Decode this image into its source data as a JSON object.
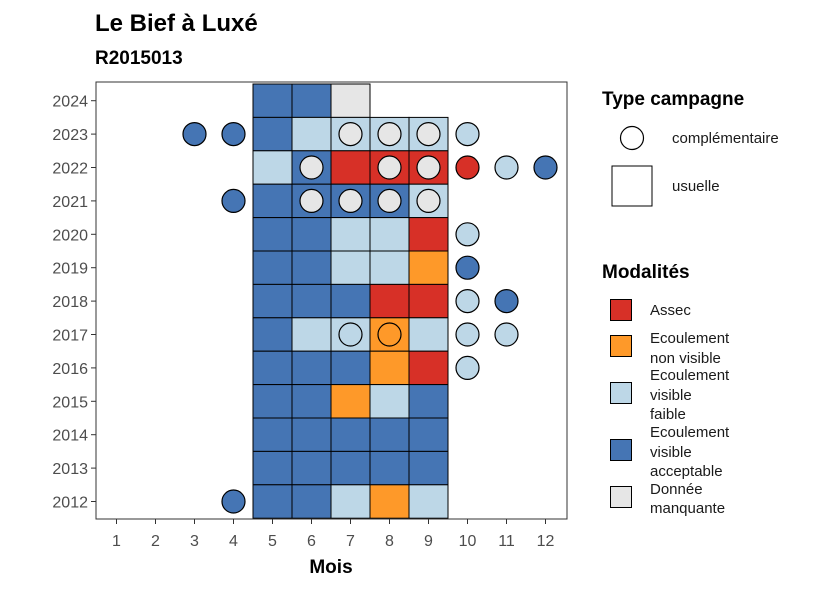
{
  "chart_data": {
    "type": "heatmap",
    "title": "Le Bief à Luxé",
    "subtitle": "R2015013",
    "xlabel": "Mois",
    "x": [
      1,
      2,
      3,
      4,
      5,
      6,
      7,
      8,
      9,
      10,
      11,
      12
    ],
    "y": [
      2012,
      2013,
      2014,
      2015,
      2016,
      2017,
      2018,
      2019,
      2020,
      2021,
      2022,
      2023,
      2024
    ],
    "modalites": [
      {
        "key": "assec",
        "label": [
          "Assec"
        ],
        "color": "#d73027"
      },
      {
        "key": "nonvisible",
        "label": [
          "Ecoulement",
          "non visible"
        ],
        "color": "#fe9929"
      },
      {
        "key": "faible",
        "label": [
          "Ecoulement",
          "visible",
          "faible"
        ],
        "color": "#bdd7e7"
      },
      {
        "key": "acceptable",
        "label": [
          "Ecoulement",
          "visible",
          "acceptable"
        ],
        "color": "#4575b4"
      },
      {
        "key": "manquante",
        "label": [
          "Donnée",
          "manquante"
        ],
        "color": "#e6e6e6"
      }
    ],
    "type_campagne": [
      {
        "key": "complementaire",
        "label": "complémentaire",
        "shape": "circle"
      },
      {
        "key": "usuelle",
        "label": "usuelle",
        "shape": "square"
      }
    ],
    "usuelle": [
      {
        "year": 2024,
        "months": {
          "5": "acceptable",
          "6": "acceptable",
          "7": "manquante"
        }
      },
      {
        "year": 2023,
        "months": {
          "5": "acceptable",
          "6": "faible",
          "7": "faible",
          "8": "faible",
          "9": "faible"
        }
      },
      {
        "year": 2022,
        "months": {
          "5": "faible",
          "6": "acceptable",
          "7": "assec",
          "8": "assec",
          "9": "assec"
        }
      },
      {
        "year": 2021,
        "months": {
          "5": "acceptable",
          "6": "acceptable",
          "7": "acceptable",
          "8": "acceptable",
          "9": "faible"
        }
      },
      {
        "year": 2020,
        "months": {
          "5": "acceptable",
          "6": "acceptable",
          "7": "faible",
          "8": "faible",
          "9": "assec"
        }
      },
      {
        "year": 2019,
        "months": {
          "5": "acceptable",
          "6": "acceptable",
          "7": "faible",
          "8": "faible",
          "9": "nonvisible"
        }
      },
      {
        "year": 2018,
        "months": {
          "5": "acceptable",
          "6": "acceptable",
          "7": "acceptable",
          "8": "assec",
          "9": "assec"
        }
      },
      {
        "year": 2017,
        "months": {
          "5": "acceptable",
          "6": "faible",
          "7": "faible",
          "8": "nonvisible",
          "9": "faible"
        }
      },
      {
        "year": 2016,
        "months": {
          "5": "acceptable",
          "6": "acceptable",
          "7": "acceptable",
          "8": "nonvisible",
          "9": "assec"
        }
      },
      {
        "year": 2015,
        "months": {
          "5": "acceptable",
          "6": "acceptable",
          "7": "nonvisible",
          "8": "faible",
          "9": "acceptable"
        }
      },
      {
        "year": 2014,
        "months": {
          "5": "acceptable",
          "6": "acceptable",
          "7": "acceptable",
          "8": "acceptable",
          "9": "acceptable"
        }
      },
      {
        "year": 2013,
        "months": {
          "5": "acceptable",
          "6": "acceptable",
          "7": "acceptable",
          "8": "acceptable",
          "9": "acceptable"
        }
      },
      {
        "year": 2012,
        "months": {
          "5": "acceptable",
          "6": "acceptable",
          "7": "faible",
          "8": "nonvisible",
          "9": "faible"
        }
      }
    ],
    "complementaire": [
      {
        "year": 2023,
        "months": {
          "3": "acceptable",
          "4": "acceptable",
          "7": "manquante",
          "8": "manquante",
          "9": "manquante",
          "10": "faible"
        }
      },
      {
        "year": 2022,
        "months": {
          "6": "manquante",
          "8": "manquante",
          "9": "manquante",
          "10": "assec",
          "11": "faible",
          "12": "acceptable"
        }
      },
      {
        "year": 2021,
        "months": {
          "4": "acceptable",
          "6": "manquante",
          "7": "manquante",
          "8": "manquante",
          "9": "manquante"
        }
      },
      {
        "year": 2020,
        "months": {
          "10": "faible"
        }
      },
      {
        "year": 2019,
        "months": {
          "10": "acceptable"
        }
      },
      {
        "year": 2018,
        "months": {
          "10": "faible",
          "11": "acceptable"
        }
      },
      {
        "year": 2017,
        "months": {
          "7": "faible",
          "8": "nonvisible",
          "10": "faible",
          "11": "faible"
        }
      },
      {
        "year": 2016,
        "months": {
          "10": "faible"
        }
      },
      {
        "year": 2012,
        "months": {
          "4": "acceptable"
        }
      }
    ],
    "legend_position": "right",
    "grid": false
  },
  "legend": {
    "type_title": "Type campagne",
    "modalites_title": "Modalités"
  }
}
